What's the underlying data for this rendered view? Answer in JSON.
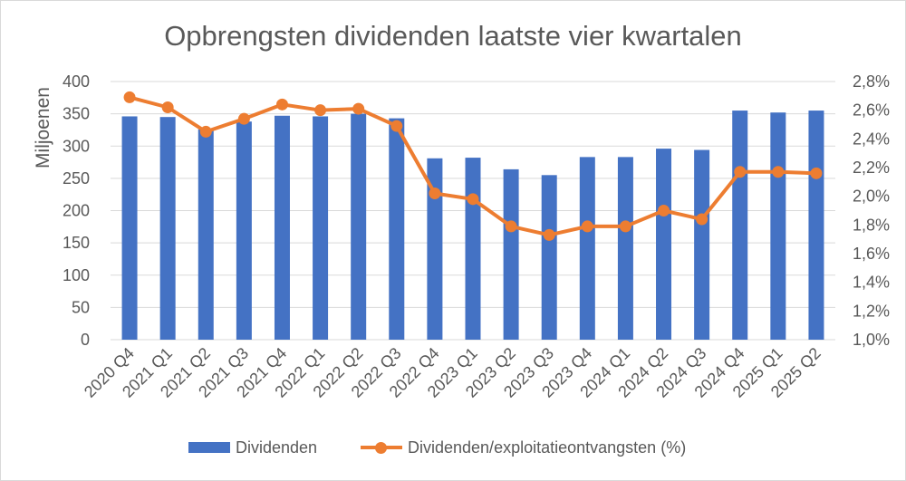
{
  "chart_data": {
    "type": "bar+line",
    "title": "Opbrengsten dividenden laatste vier kwartalen",
    "categories": [
      "2020 Q4",
      "2021 Q1",
      "2021 Q2",
      "2021 Q3",
      "2021 Q4",
      "2022 Q1",
      "2022 Q2",
      "2022 Q3",
      "2022 Q4",
      "2023 Q1",
      "2023 Q2",
      "2023 Q3",
      "2023 Q4",
      "2024 Q1",
      "2024 Q2",
      "2024 Q3",
      "2024 Q4",
      "2025 Q1",
      "2025 Q2"
    ],
    "ylabel": "Miljoenen",
    "ylim": [
      0,
      400
    ],
    "yticks": [
      "0",
      "50",
      "100",
      "150",
      "200",
      "250",
      "300",
      "350",
      "400"
    ],
    "y2lim": [
      1.0,
      2.8
    ],
    "y2ticks": [
      "1,0%",
      "1,2%",
      "1,4%",
      "1,6%",
      "1,8%",
      "2,0%",
      "2,2%",
      "2,4%",
      "2,6%",
      "2,8%"
    ],
    "grid": true,
    "legend_position": "bottom",
    "series": [
      {
        "name": "Dividenden",
        "type": "bar",
        "axis": "left",
        "color": "#4472c4",
        "values": [
          346,
          345,
          326,
          338,
          347,
          346,
          350,
          343,
          281,
          282,
          264,
          255,
          283,
          283,
          296,
          294,
          355,
          352,
          355
        ]
      },
      {
        "name": "Dividenden/exploitatieontvangsten (%)",
        "type": "line",
        "axis": "right",
        "color": "#ed7d31",
        "values": [
          2.69,
          2.62,
          2.45,
          2.54,
          2.64,
          2.6,
          2.61,
          2.49,
          2.02,
          1.98,
          1.79,
          1.73,
          1.79,
          1.79,
          1.9,
          1.84,
          2.17,
          2.17,
          2.16
        ]
      }
    ]
  }
}
